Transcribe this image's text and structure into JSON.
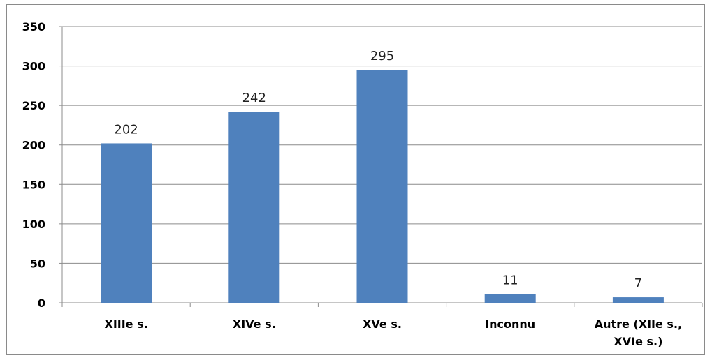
{
  "chart_data": {
    "type": "bar",
    "title": "",
    "xlabel": "",
    "ylabel": "",
    "categories": [
      [
        "XIIIe s."
      ],
      [
        "XIVe s."
      ],
      [
        "XVe s."
      ],
      [
        "Inconnu"
      ],
      [
        "Autre (XIIe s.,",
        "XVIe s.)"
      ]
    ],
    "values": [
      202,
      242,
      295,
      11,
      7
    ],
    "ylim": [
      0,
      350
    ],
    "yticks": [
      0,
      50,
      100,
      150,
      200,
      250,
      300,
      350
    ],
    "grid": true,
    "legend": "none",
    "colors": {
      "bar": "#4F81BD",
      "grid": "#8c8c8c",
      "axis": "#8c8c8c"
    }
  }
}
